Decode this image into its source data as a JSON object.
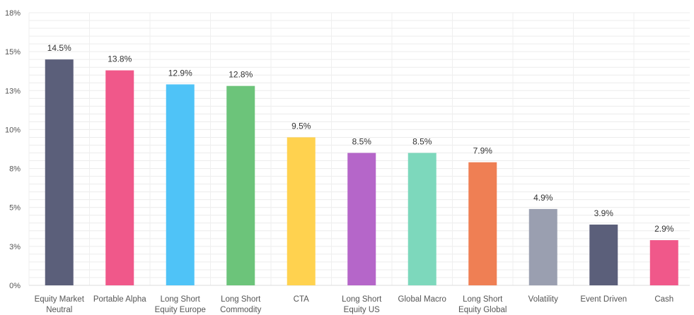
{
  "chart_data": {
    "type": "bar",
    "categories": [
      "Equity Market Neutral",
      "Portable Alpha",
      "Long Short Equity Europe",
      "Long Short Commodity",
      "CTA",
      "Long Short Equity US",
      "Global Macro",
      "Long Short Equity Global",
      "Volatility",
      "Event Driven",
      "Cash"
    ],
    "category_lines": [
      [
        "Equity Market",
        "Neutral"
      ],
      [
        "Portable Alpha"
      ],
      [
        "Long Short",
        "Equity Europe"
      ],
      [
        "Long Short",
        "Commodity"
      ],
      [
        "CTA"
      ],
      [
        "Long Short",
        "Equity US"
      ],
      [
        "Global Macro"
      ],
      [
        "Long Short",
        "Equity Global"
      ],
      [
        "Volatility"
      ],
      [
        "Event Driven"
      ],
      [
        "Cash"
      ]
    ],
    "values": [
      14.5,
      13.8,
      12.9,
      12.8,
      9.5,
      8.5,
      8.5,
      7.9,
      4.9,
      3.9,
      2.9
    ],
    "value_labels": [
      "14.5%",
      "13.8%",
      "12.9%",
      "12.8%",
      "9.5%",
      "8.5%",
      "8.5%",
      "7.9%",
      "4.9%",
      "3.9%",
      "2.9%"
    ],
    "colors": [
      "#5b5f7a",
      "#f0588a",
      "#4fc3f7",
      "#6cc47a",
      "#ffd24f",
      "#b566c9",
      "#7dd8bc",
      "#ef7f54",
      "#9a9fb0",
      "#5b5f7a",
      "#f0588a"
    ],
    "yticks": [
      0,
      2.5,
      5,
      7.5,
      10,
      12.5,
      15,
      17.5
    ],
    "ytick_labels": [
      "0%",
      "3%",
      "5%",
      "8%",
      "10%",
      "13%",
      "15%",
      "18%"
    ],
    "ylim": [
      0,
      17.5
    ],
    "grid": true,
    "legend": "none",
    "title": "",
    "xlabel": "",
    "ylabel": ""
  }
}
